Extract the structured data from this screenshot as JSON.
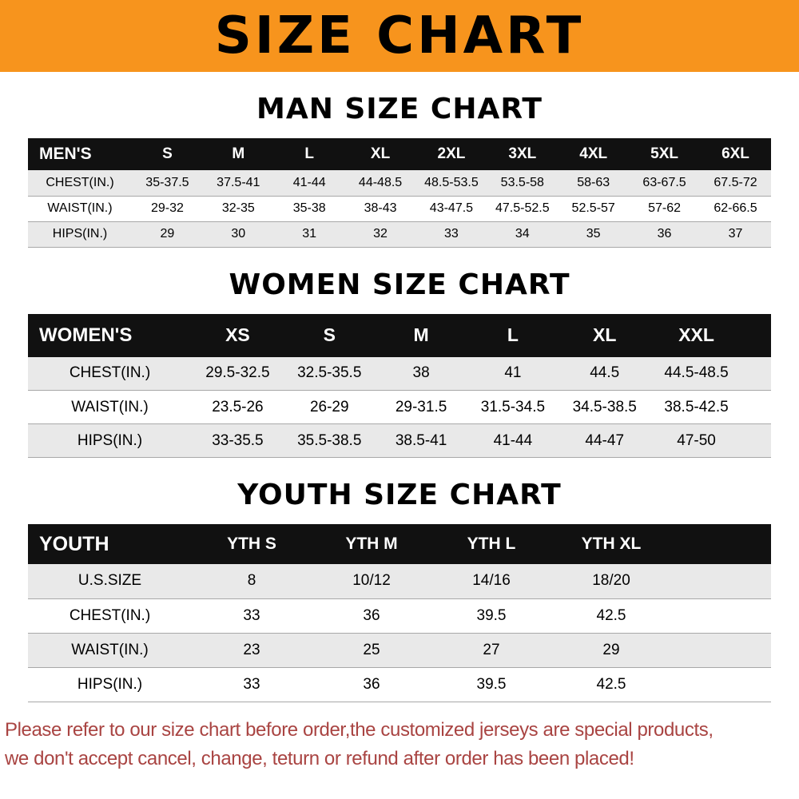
{
  "banner": {
    "title": "SIZE CHART"
  },
  "sections": [
    {
      "heading": "MAN SIZE CHART",
      "table": {
        "header": [
          "MEN'S",
          "S",
          "M",
          "L",
          "XL",
          "2XL",
          "3XL",
          "4XL",
          "5XL",
          "6XL"
        ],
        "rows": [
          [
            "CHEST(IN.)",
            "35-37.5",
            "37.5-41",
            "41-44",
            "44-48.5",
            "48.5-53.5",
            "53.5-58",
            "58-63",
            "63-67.5",
            "67.5-72"
          ],
          [
            "WAIST(IN.)",
            "29-32",
            "32-35",
            "35-38",
            "38-43",
            "43-47.5",
            "47.5-52.5",
            "52.5-57",
            "57-62",
            "62-66.5"
          ],
          [
            "HIPS(IN.)",
            "29",
            "30",
            "31",
            "32",
            "33",
            "34",
            "35",
            "36",
            "37"
          ]
        ]
      }
    },
    {
      "heading": "WOMEN SIZE CHART",
      "table": {
        "header": [
          "WOMEN'S",
          "XS",
          "S",
          "M",
          "L",
          "XL",
          "XXL"
        ],
        "rows": [
          [
            "CHEST(IN.)",
            "29.5-32.5",
            "32.5-35.5",
            "38",
            "41",
            "44.5",
            "44.5-48.5"
          ],
          [
            "WAIST(IN.)",
            "23.5-26",
            "26-29",
            "29-31.5",
            "31.5-34.5",
            "34.5-38.5",
            "38.5-42.5"
          ],
          [
            "HIPS(IN.)",
            "33-35.5",
            "35.5-38.5",
            "38.5-41",
            "41-44",
            "44-47",
            "47-50"
          ]
        ]
      }
    },
    {
      "heading": "YOUTH SIZE CHART",
      "table": {
        "header": [
          "YOUTH",
          "YTH S",
          "YTH M",
          "YTH L",
          "YTH XL"
        ],
        "rows": [
          [
            "U.S.SIZE",
            "8",
            "10/12",
            "14/16",
            "18/20"
          ],
          [
            "CHEST(IN.)",
            "33",
            "36",
            "39.5",
            "42.5"
          ],
          [
            "WAIST(IN.)",
            "23",
            "25",
            "27",
            "29"
          ],
          [
            "HIPS(IN.)",
            "33",
            "36",
            "39.5",
            "42.5"
          ]
        ]
      }
    }
  ],
  "footer": {
    "line1": "Please refer to our size chart before order,the customized jerseys are special products,",
    "line2": "we don't accept cancel, change, teturn or refund after order has been placed!"
  },
  "colors": {
    "banner_bg": "#f7941d",
    "header_bg": "#111111",
    "stripe": "#e9e9e9",
    "footer_text": "#a94442"
  }
}
